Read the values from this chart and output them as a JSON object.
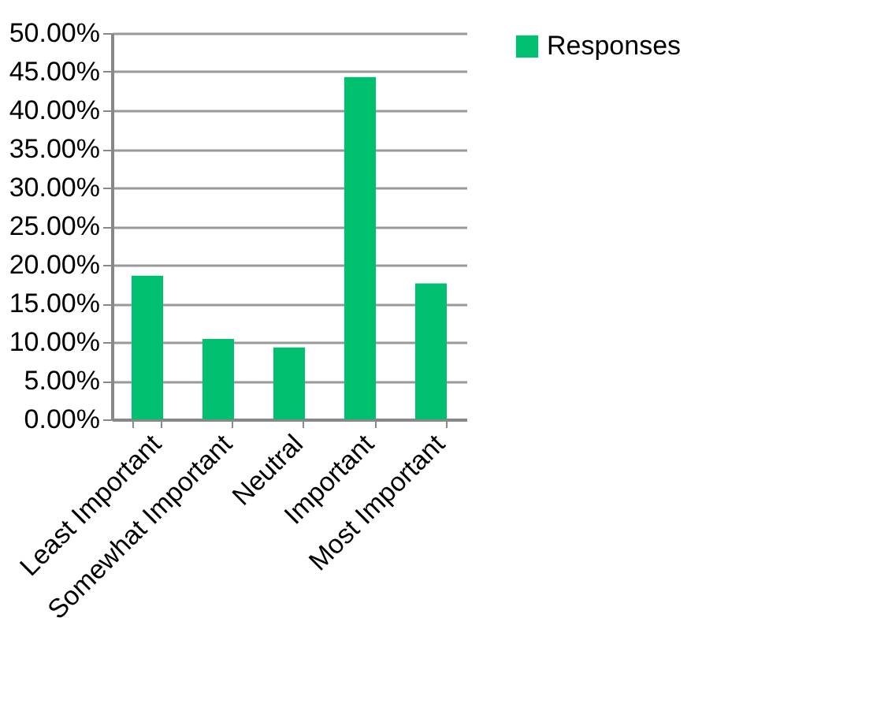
{
  "chart_data": {
    "type": "bar",
    "categories": [
      "Least Important",
      "Somewhat Important",
      "Neutral",
      "Important",
      "Most Important"
    ],
    "series": [
      {
        "name": "Responses",
        "color": "#00bf6f",
        "values": [
          18.6,
          10.4,
          9.3,
          44.3,
          17.6
        ]
      }
    ],
    "ylim": [
      0,
      50
    ],
    "yticks": [
      {
        "value": 0,
        "label": "0.00%"
      },
      {
        "value": 5,
        "label": "5.00%"
      },
      {
        "value": 10,
        "label": "10.00%"
      },
      {
        "value": 15,
        "label": "15.00%"
      },
      {
        "value": 20,
        "label": "20.00%"
      },
      {
        "value": 25,
        "label": "25.00%"
      },
      {
        "value": 30,
        "label": "30.00%"
      },
      {
        "value": 35,
        "label": "35.00%"
      },
      {
        "value": 40,
        "label": "40.00%"
      },
      {
        "value": 45,
        "label": "45.00%"
      },
      {
        "value": 50,
        "label": "50.00%"
      }
    ],
    "grid": "y",
    "legend": "right"
  }
}
